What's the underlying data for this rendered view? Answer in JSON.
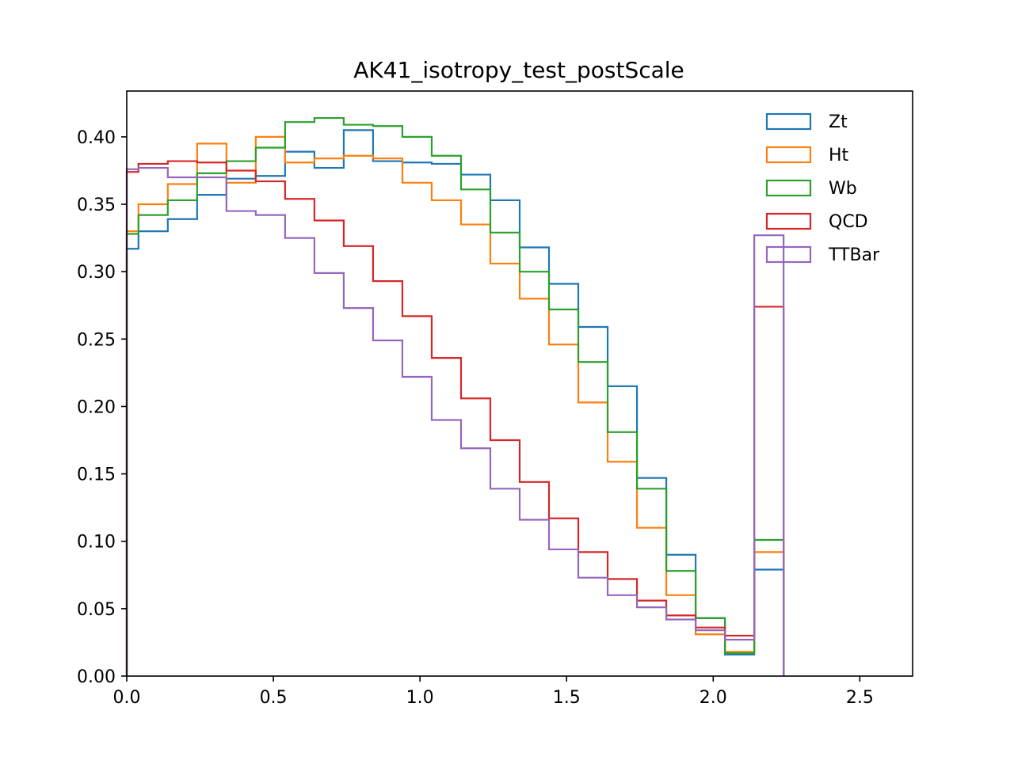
{
  "chart_data": {
    "type": "step",
    "title": "AK41_isotropy_test_postScale",
    "xlabel": "",
    "ylabel": "",
    "xlim": [
      0.0,
      2.68
    ],
    "ylim": [
      0.0,
      0.434
    ],
    "xticks": [
      "0.0",
      "0.5",
      "1.0",
      "1.5",
      "2.0",
      "2.5"
    ],
    "yticks": [
      "0.00",
      "0.05",
      "0.10",
      "0.15",
      "0.20",
      "0.25",
      "0.30",
      "0.35",
      "0.40"
    ],
    "bin_edges": [
      0.0,
      0.04,
      0.14,
      0.24,
      0.34,
      0.44,
      0.54,
      0.64,
      0.74,
      0.84,
      0.94,
      1.04,
      1.14,
      1.24,
      1.34,
      1.44,
      1.54,
      1.64,
      1.74,
      1.84,
      1.94,
      2.04,
      2.14,
      2.24
    ],
    "grid": false,
    "legend_position": "top-right",
    "series": [
      {
        "name": "Zt",
        "color": "#1f77b4",
        "values": [
          0.317,
          0.33,
          0.339,
          0.357,
          0.369,
          0.371,
          0.389,
          0.377,
          0.405,
          0.382,
          0.381,
          0.38,
          0.372,
          0.353,
          0.318,
          0.291,
          0.259,
          0.215,
          0.147,
          0.09,
          0.043,
          0.016,
          0.079
        ]
      },
      {
        "name": "Ht",
        "color": "#ff7f0e",
        "values": [
          0.33,
          0.35,
          0.365,
          0.395,
          0.366,
          0.4,
          0.381,
          0.384,
          0.386,
          0.384,
          0.366,
          0.353,
          0.335,
          0.306,
          0.28,
          0.246,
          0.203,
          0.159,
          0.11,
          0.06,
          0.031,
          0.018,
          0.092
        ]
      },
      {
        "name": "Wb",
        "color": "#2ca02c",
        "values": [
          0.328,
          0.342,
          0.353,
          0.373,
          0.382,
          0.392,
          0.411,
          0.414,
          0.409,
          0.408,
          0.4,
          0.386,
          0.361,
          0.329,
          0.3,
          0.272,
          0.233,
          0.181,
          0.139,
          0.078,
          0.043,
          0.017,
          0.101
        ]
      },
      {
        "name": "QCD",
        "color": "#d62728",
        "values": [
          0.374,
          0.38,
          0.382,
          0.381,
          0.375,
          0.367,
          0.354,
          0.338,
          0.319,
          0.293,
          0.267,
          0.236,
          0.206,
          0.175,
          0.144,
          0.117,
          0.092,
          0.072,
          0.056,
          0.045,
          0.036,
          0.03,
          0.274
        ]
      },
      {
        "name": "TTBar",
        "color": "#9467bd",
        "values": [
          0.376,
          0.377,
          0.37,
          0.37,
          0.345,
          0.342,
          0.325,
          0.299,
          0.273,
          0.249,
          0.222,
          0.19,
          0.169,
          0.139,
          0.116,
          0.094,
          0.073,
          0.06,
          0.051,
          0.042,
          0.034,
          0.027,
          0.327
        ]
      }
    ]
  }
}
